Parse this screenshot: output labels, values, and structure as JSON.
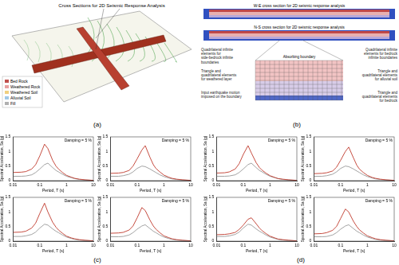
{
  "figure_labels": [
    "(a)",
    "(b)",
    "(c)",
    "(d)"
  ],
  "map_panel": {
    "title": "Cross Sections for 2D Seismic Response Analysis",
    "legend": [
      {
        "label": "Bed Rock",
        "color": "#c0504d"
      },
      {
        "label": "Weathered Rock",
        "color": "#e8a0a0"
      },
      {
        "label": "Weathered Soil",
        "color": "#f0d080"
      },
      {
        "label": "Alluvial Soil",
        "color": "#a0c8e8"
      },
      {
        "label": "Fill",
        "color": "#b0b0b0"
      }
    ]
  },
  "section_panel": {
    "sections": [
      "W-E cross section for 2D seismic response analysis",
      "N-S cross section for 2D seismic response analysis"
    ],
    "boundary_note": "Absorbing boundary",
    "notes": [
      "Quadrilateral infinite elements for side-bedrock infinite boundaries",
      "Triangle and quadrilateral elements for weathered layer",
      "Input earthquake motion imposed on the boundary",
      "Quadrilateral infinite elements for bedrock infinite boundaries",
      "Triangle and quadrilateral elements for alluvial soil",
      "Triangle and quadrilateral elements for bedrock"
    ]
  },
  "chart_data": [
    {
      "type": "line",
      "x_label": "Period, T (s)",
      "y_label": "Spectral Acceleration, Sa (g)",
      "annotation": "Damping = 5 %",
      "log": "x",
      "grid": false,
      "xlim": [
        0.01,
        10
      ],
      "xticks": [
        0.01,
        0.1,
        1,
        10
      ],
      "ylim": [
        0,
        1.5
      ],
      "yticks": [
        0,
        0.5,
        1,
        1.5
      ],
      "x": [
        0.01,
        0.02,
        0.03,
        0.05,
        0.07,
        0.1,
        0.15,
        0.2,
        0.3,
        0.4,
        0.5,
        0.7,
        1,
        1.5,
        2,
        3,
        5,
        10
      ],
      "series": [
        {
          "color": "#c0392b",
          "values": [
            0.28,
            0.29,
            0.31,
            0.4,
            0.55,
            0.85,
            1.25,
            1.1,
            0.7,
            0.5,
            0.4,
            0.28,
            0.18,
            0.12,
            0.08,
            0.05,
            0.03,
            0.01
          ]
        },
        {
          "color": "#999999",
          "values": [
            0.15,
            0.15,
            0.16,
            0.2,
            0.28,
            0.4,
            0.55,
            0.6,
            0.45,
            0.35,
            0.3,
            0.22,
            0.15,
            0.1,
            0.07,
            0.04,
            0.02,
            0.01
          ]
        }
      ]
    },
    {
      "type": "line",
      "x_label": "Period, T (s)",
      "y_label": "Spectral Acceleration, Sa (g)",
      "annotation": "Damping = 5 %",
      "log": "x",
      "grid": false,
      "xlim": [
        0.01,
        10
      ],
      "xticks": [
        0.01,
        0.1,
        1,
        10
      ],
      "ylim": [
        0,
        1.5
      ],
      "yticks": [
        0,
        0.5,
        1,
        1.5
      ],
      "x": [
        0.01,
        0.02,
        0.03,
        0.05,
        0.07,
        0.1,
        0.15,
        0.2,
        0.3,
        0.4,
        0.5,
        0.7,
        1,
        1.5,
        2,
        3,
        5,
        10
      ],
      "series": [
        {
          "color": "#c0392b",
          "values": [
            0.25,
            0.26,
            0.28,
            0.35,
            0.5,
            0.75,
            1.05,
            1.2,
            0.8,
            0.55,
            0.42,
            0.3,
            0.19,
            0.12,
            0.08,
            0.05,
            0.03,
            0.01
          ]
        },
        {
          "color": "#999999",
          "values": [
            0.15,
            0.15,
            0.17,
            0.22,
            0.3,
            0.42,
            0.5,
            0.48,
            0.4,
            0.33,
            0.28,
            0.2,
            0.14,
            0.09,
            0.06,
            0.04,
            0.02,
            0.01
          ]
        }
      ]
    },
    {
      "type": "line",
      "x_label": "Period, T (s)",
      "y_label": "Spectral Acceleration, Sa (g)",
      "annotation": "Damping = 5 %",
      "log": "x",
      "grid": false,
      "xlim": [
        0.01,
        10
      ],
      "xticks": [
        0.01,
        0.1,
        1,
        10
      ],
      "ylim": [
        0,
        1.5
      ],
      "yticks": [
        0,
        0.5,
        1,
        1.5
      ],
      "x": [
        0.01,
        0.02,
        0.03,
        0.05,
        0.07,
        0.1,
        0.15,
        0.2,
        0.3,
        0.4,
        0.5,
        0.7,
        1,
        1.5,
        2,
        3,
        5,
        10
      ],
      "series": [
        {
          "color": "#c0392b",
          "values": [
            0.3,
            0.31,
            0.34,
            0.45,
            0.62,
            0.95,
            1.3,
            1.0,
            0.65,
            0.48,
            0.38,
            0.27,
            0.17,
            0.11,
            0.08,
            0.05,
            0.03,
            0.01
          ]
        },
        {
          "color": "#999999",
          "values": [
            0.16,
            0.16,
            0.18,
            0.23,
            0.31,
            0.45,
            0.58,
            0.55,
            0.42,
            0.34,
            0.29,
            0.21,
            0.14,
            0.09,
            0.06,
            0.04,
            0.02,
            0.01
          ]
        }
      ]
    },
    {
      "type": "line",
      "x_label": "Period, T (s)",
      "y_label": "Spectral Acceleration, Sa (g)",
      "annotation": "Damping = 5 %",
      "log": "x",
      "grid": false,
      "xlim": [
        0.01,
        10
      ],
      "xticks": [
        0.01,
        0.1,
        1,
        10
      ],
      "ylim": [
        0,
        1.5
      ],
      "yticks": [
        0,
        0.5,
        1,
        1.5
      ],
      "x": [
        0.01,
        0.02,
        0.03,
        0.05,
        0.07,
        0.1,
        0.15,
        0.2,
        0.3,
        0.4,
        0.5,
        0.7,
        1,
        1.5,
        2,
        3,
        5,
        10
      ],
      "series": [
        {
          "color": "#c0392b",
          "values": [
            0.27,
            0.28,
            0.3,
            0.38,
            0.52,
            0.8,
            1.15,
            1.05,
            0.72,
            0.52,
            0.41,
            0.29,
            0.18,
            0.12,
            0.08,
            0.05,
            0.03,
            0.01
          ]
        },
        {
          "color": "#999999",
          "values": [
            0.15,
            0.15,
            0.16,
            0.21,
            0.29,
            0.41,
            0.52,
            0.56,
            0.43,
            0.34,
            0.29,
            0.21,
            0.14,
            0.09,
            0.06,
            0.04,
            0.02,
            0.01
          ]
        }
      ]
    },
    {
      "type": "line",
      "x_label": "Period, T (s)",
      "y_label": "Spectral Acceleration, Sa (g)",
      "annotation": "Damping = 5 %",
      "log": "x",
      "grid": false,
      "xlim": [
        0.01,
        10
      ],
      "xticks": [
        0.01,
        0.1,
        1,
        10
      ],
      "ylim": [
        0,
        1.5
      ],
      "yticks": [
        0,
        0.5,
        1,
        1.5
      ],
      "x": [
        0.01,
        0.02,
        0.03,
        0.05,
        0.07,
        0.1,
        0.15,
        0.2,
        0.3,
        0.4,
        0.5,
        0.7,
        1,
        1.5,
        2,
        3,
        5,
        10
      ],
      "series": [
        {
          "color": "#c0392b",
          "values": [
            0.26,
            0.27,
            0.3,
            0.4,
            0.58,
            0.9,
            1.2,
            0.95,
            0.62,
            0.45,
            0.36,
            0.26,
            0.17,
            0.11,
            0.07,
            0.05,
            0.03,
            0.01
          ]
        },
        {
          "color": "#999999",
          "values": [
            0.15,
            0.15,
            0.16,
            0.2,
            0.28,
            0.4,
            0.55,
            0.6,
            0.45,
            0.35,
            0.3,
            0.22,
            0.15,
            0.1,
            0.07,
            0.04,
            0.02,
            0.01
          ]
        }
      ]
    },
    {
      "type": "line",
      "x_label": "Period, T (s)",
      "y_label": "Spectral Acceleration, Sa (g)",
      "annotation": "Damping = 5 %",
      "log": "x",
      "grid": false,
      "xlim": [
        0.01,
        10
      ],
      "xticks": [
        0.01,
        0.1,
        1,
        10
      ],
      "ylim": [
        0,
        1.5
      ],
      "yticks": [
        0,
        0.5,
        1,
        1.5
      ],
      "x": [
        0.01,
        0.02,
        0.03,
        0.05,
        0.07,
        0.1,
        0.15,
        0.2,
        0.3,
        0.4,
        0.5,
        0.7,
        1,
        1.5,
        2,
        3,
        5,
        10
      ],
      "series": [
        {
          "color": "#c0392b",
          "values": [
            0.24,
            0.25,
            0.27,
            0.33,
            0.46,
            0.7,
            1.0,
            1.15,
            0.78,
            0.53,
            0.4,
            0.28,
            0.18,
            0.11,
            0.08,
            0.05,
            0.03,
            0.01
          ]
        },
        {
          "color": "#999999",
          "values": [
            0.15,
            0.15,
            0.17,
            0.22,
            0.3,
            0.42,
            0.5,
            0.48,
            0.4,
            0.33,
            0.28,
            0.2,
            0.14,
            0.09,
            0.06,
            0.04,
            0.02,
            0.01
          ]
        }
      ]
    },
    {
      "type": "line",
      "x_label": "Period, T (s)",
      "y_label": "Spectral Acceleration, Sa (g)",
      "annotation": "Damping = 5 %",
      "log": "x",
      "grid": false,
      "xlim": [
        0.01,
        10
      ],
      "xticks": [
        0.01,
        0.1,
        1,
        10
      ],
      "ylim": [
        0,
        1.5
      ],
      "yticks": [
        0,
        0.5,
        1,
        1.5
      ],
      "x": [
        0.01,
        0.02,
        0.03,
        0.05,
        0.07,
        0.1,
        0.15,
        0.2,
        0.3,
        0.4,
        0.5,
        0.7,
        1,
        1.5,
        2,
        3,
        5,
        10
      ],
      "series": [
        {
          "color": "#c0392b",
          "values": [
            0.22,
            0.23,
            0.25,
            0.3,
            0.4,
            0.55,
            0.75,
            0.8,
            0.6,
            0.45,
            0.36,
            0.26,
            0.17,
            0.11,
            0.07,
            0.05,
            0.03,
            0.01
          ]
        },
        {
          "color": "#999999",
          "values": [
            0.16,
            0.16,
            0.18,
            0.23,
            0.31,
            0.45,
            0.58,
            0.55,
            0.42,
            0.34,
            0.29,
            0.21,
            0.14,
            0.09,
            0.06,
            0.04,
            0.02,
            0.01
          ]
        }
      ]
    },
    {
      "type": "line",
      "x_label": "Period, T (s)",
      "y_label": "Spectral Acceleration, Sa (g)",
      "annotation": "Damping = 5 %",
      "log": "x",
      "grid": false,
      "xlim": [
        0.01,
        10
      ],
      "xticks": [
        0.01,
        0.1,
        1,
        10
      ],
      "ylim": [
        0,
        1.5
      ],
      "yticks": [
        0,
        0.5,
        1,
        1.5
      ],
      "x": [
        0.01,
        0.02,
        0.03,
        0.05,
        0.07,
        0.1,
        0.15,
        0.2,
        0.3,
        0.4,
        0.5,
        0.7,
        1,
        1.5,
        2,
        3,
        5,
        10
      ],
      "series": [
        {
          "color": "#c0392b",
          "values": [
            0.25,
            0.26,
            0.29,
            0.37,
            0.5,
            0.78,
            1.1,
            1.0,
            0.68,
            0.5,
            0.39,
            0.28,
            0.18,
            0.12,
            0.08,
            0.05,
            0.03,
            0.01
          ]
        },
        {
          "color": "#999999",
          "values": [
            0.15,
            0.15,
            0.16,
            0.21,
            0.29,
            0.41,
            0.52,
            0.56,
            0.43,
            0.34,
            0.29,
            0.21,
            0.14,
            0.09,
            0.06,
            0.04,
            0.02,
            0.01
          ]
        }
      ]
    }
  ]
}
